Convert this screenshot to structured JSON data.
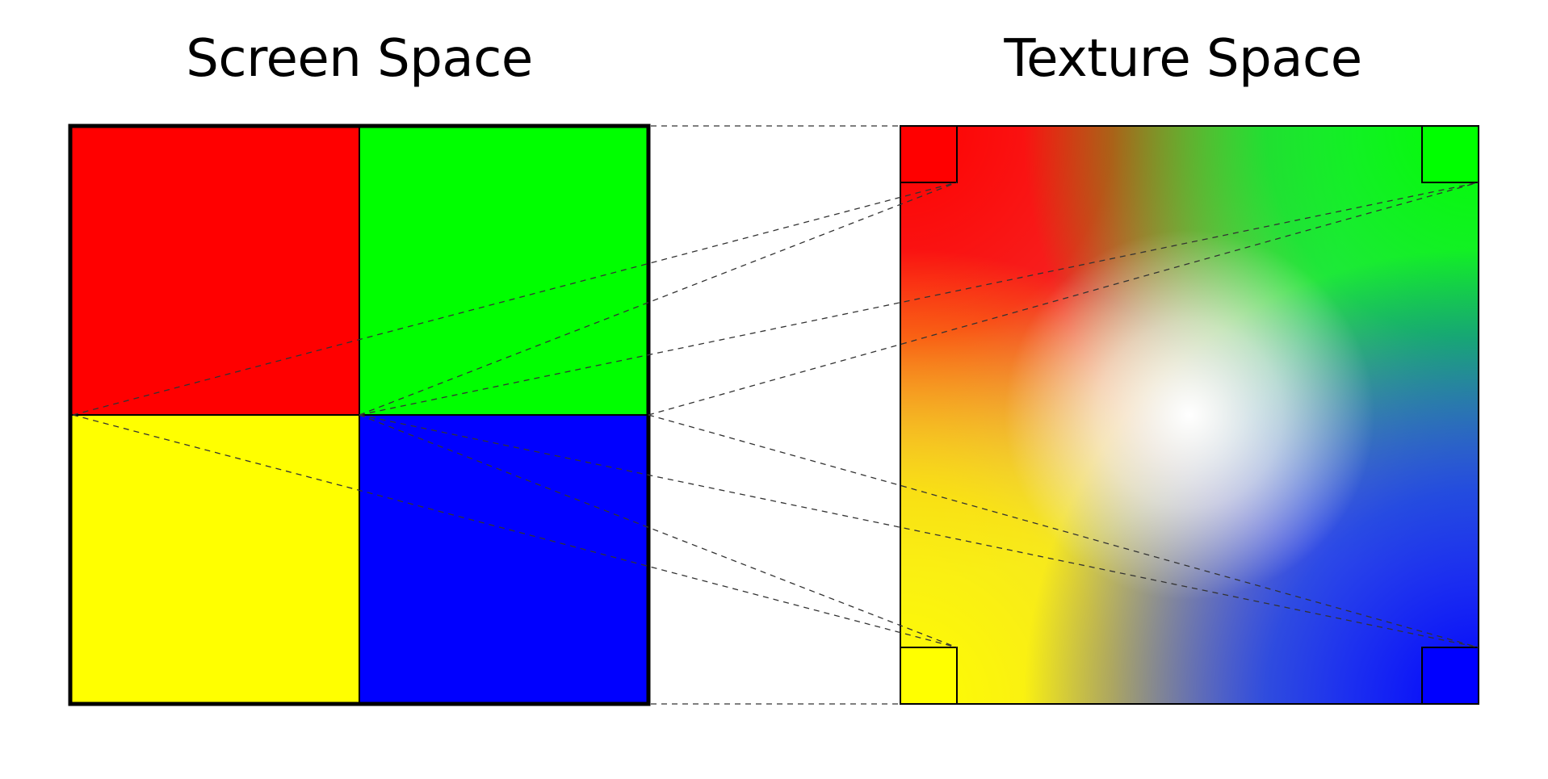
{
  "titles": {
    "screen_space": "Screen Space",
    "texture_space": "Texture Space"
  },
  "colors": {
    "red": "#ff0000",
    "green": "#00ff00",
    "yellow": "#ffff00",
    "blue": "#0000ff",
    "white": "#ffffff",
    "outline": "#000000",
    "connector": "#444444"
  },
  "quadrants": [
    {
      "name": "red",
      "color": "#ff0000"
    },
    {
      "name": "green",
      "color": "#00ff00"
    },
    {
      "name": "yellow",
      "color": "#ffff00"
    },
    {
      "name": "blue",
      "color": "#0000ff"
    }
  ]
}
